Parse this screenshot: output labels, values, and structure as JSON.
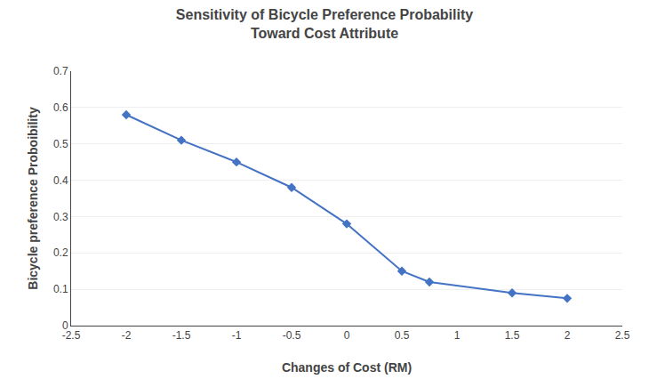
{
  "chart_data": {
    "type": "line",
    "title": "Sensitivity of Bicycle Preference Probability\nToward Cost Attribute",
    "x_label": "Changes of Cost (RM)",
    "y_label": "Bicycle preference Proboibility",
    "x": [
      -2.0,
      -1.5,
      -1.0,
      -0.5,
      0.0,
      0.5,
      0.75,
      1.5,
      2.0
    ],
    "values": [
      0.58,
      0.51,
      0.45,
      0.38,
      0.28,
      0.15,
      0.12,
      0.09,
      0.075
    ],
    "color": "#4472C4",
    "marker": "diamond",
    "xlim": [
      -2.5,
      2.5
    ],
    "xticks": [
      -2.5,
      -2,
      -1.5,
      -1,
      -0.5,
      0,
      0.5,
      1,
      1.5,
      2,
      2.5
    ],
    "ylim": [
      0,
      0.7
    ],
    "yticks": [
      0,
      0.1,
      0.2,
      0.3,
      0.4,
      0.5,
      0.6,
      0.7
    ],
    "grid": true
  }
}
